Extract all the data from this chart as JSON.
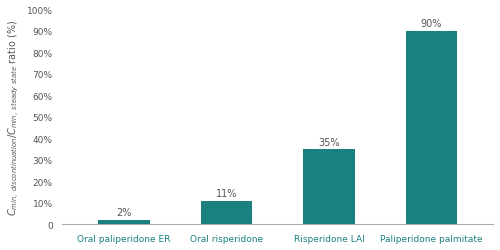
{
  "categories": [
    "Oral paliperidone ER",
    "Oral risperidone",
    "Risperidone LAI",
    "Paliperidone palmitate"
  ],
  "values": [
    2,
    11,
    35,
    90
  ],
  "bar_color": "#1a8080",
  "ylabel": "Cₙᴵₙ, discontinuation/Cₙᴵₙ, steady state ratio (%)",
  "ylim": [
    0,
    100
  ],
  "yticks": [
    0,
    10,
    20,
    30,
    40,
    50,
    60,
    70,
    80,
    90,
    100
  ],
  "ytick_labels": [
    "0",
    "10%",
    "20%",
    "30%",
    "40%",
    "50%",
    "60%",
    "70%",
    "80%",
    "90%",
    "100%"
  ],
  "bar_width": 0.5,
  "label_fontsize": 7,
  "tick_fontsize": 6.5,
  "bar_label_fontsize": 7
}
